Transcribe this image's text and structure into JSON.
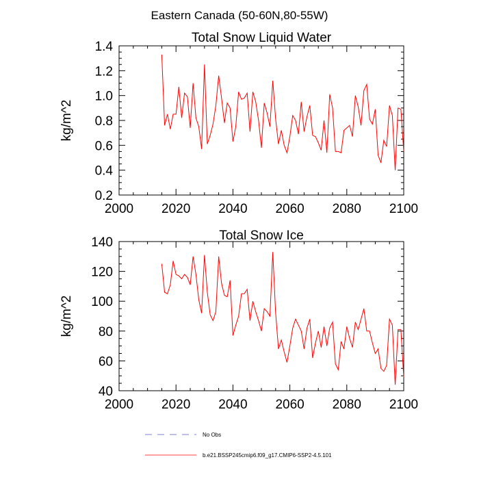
{
  "suptitle": "Eastern Canada (50-60N,80-55W)",
  "legend": {
    "obs_label": "No Obs",
    "obs_color": "#5555cc",
    "model_label": "b.e21.BSSP245cmip6.f09_g17.CMIP6-SSP2-4.5.101",
    "model_color": "#ff0000"
  },
  "chart_data": [
    {
      "type": "line",
      "title": "Total Snow Liquid Water",
      "xlabel": "",
      "ylabel": "kg/m^2",
      "xlim": [
        2000,
        2100
      ],
      "ylim": [
        0.2,
        1.4
      ],
      "xticks": [
        2000,
        2020,
        2040,
        2060,
        2080,
        2100
      ],
      "yticks": [
        0.2,
        0.4,
        0.6,
        0.8,
        1.0,
        1.2,
        1.4
      ],
      "ytick_labels": [
        "0.2",
        "0.4",
        "0.6",
        "0.8",
        "1.0",
        "1.2",
        "1.4"
      ],
      "x_start": 2015,
      "series": [
        {
          "name": "b.e21.BSSP245cmip6.f09_g17.CMIP6-SSP2-4.5.101",
          "color": "#ff0000",
          "values": [
            1.33,
            0.76,
            0.85,
            0.73,
            0.85,
            0.85,
            1.07,
            0.82,
            1.02,
            0.99,
            0.74,
            1.1,
            0.82,
            0.75,
            0.57,
            1.25,
            0.61,
            0.68,
            0.77,
            0.92,
            1.16,
            0.98,
            0.78,
            0.94,
            0.9,
            0.63,
            0.75,
            1.03,
            0.97,
            0.98,
            1.02,
            0.71,
            1.03,
            0.95,
            0.8,
            0.58,
            0.94,
            0.86,
            0.75,
            1.12,
            0.81,
            0.61,
            0.72,
            0.6,
            0.54,
            0.67,
            0.84,
            0.8,
            0.69,
            0.95,
            0.71,
            0.83,
            0.92,
            0.68,
            0.67,
            0.62,
            0.56,
            0.8,
            0.54,
            1.01,
            0.9,
            0.55,
            0.55,
            0.54,
            0.72,
            0.74,
            0.76,
            0.67,
            1.0,
            0.91,
            0.76,
            1.04,
            1.09,
            0.81,
            0.77,
            0.89,
            0.52,
            0.46,
            0.64,
            0.59,
            0.92,
            0.84,
            0.4,
            0.9,
            0.89,
            0.55
          ]
        }
      ]
    },
    {
      "type": "line",
      "title": "Total Snow Ice",
      "xlabel": "",
      "ylabel": "kg/m^2",
      "xlim": [
        2000,
        2100
      ],
      "ylim": [
        40,
        140
      ],
      "xticks": [
        2000,
        2020,
        2040,
        2060,
        2080,
        2100
      ],
      "yticks": [
        40,
        60,
        80,
        100,
        120,
        140
      ],
      "ytick_labels": [
        "40",
        "60",
        "80",
        "100",
        "120",
        "140"
      ],
      "x_start": 2015,
      "series": [
        {
          "name": "b.e21.BSSP245cmip6.f09_g17.CMIP6-SSP2-4.5.101",
          "color": "#ff0000",
          "values": [
            125,
            106,
            105,
            111,
            127,
            118,
            117,
            115,
            118,
            116,
            111,
            130,
            118,
            101,
            92,
            131,
            106,
            91,
            87,
            93,
            130,
            112,
            104,
            103,
            114,
            77,
            84,
            90,
            105,
            105,
            108,
            87,
            100,
            93,
            87,
            80,
            95,
            93,
            90,
            133,
            92,
            68,
            74,
            66,
            59,
            70,
            82,
            88,
            84,
            80,
            68,
            82,
            88,
            62,
            72,
            80,
            69,
            83,
            70,
            82,
            86,
            58,
            54,
            73,
            68,
            83,
            75,
            69,
            86,
            81,
            88,
            95,
            80,
            80,
            72,
            65,
            68,
            55,
            53,
            57,
            88,
            84,
            44,
            81,
            81,
            49
          ]
        }
      ]
    }
  ]
}
